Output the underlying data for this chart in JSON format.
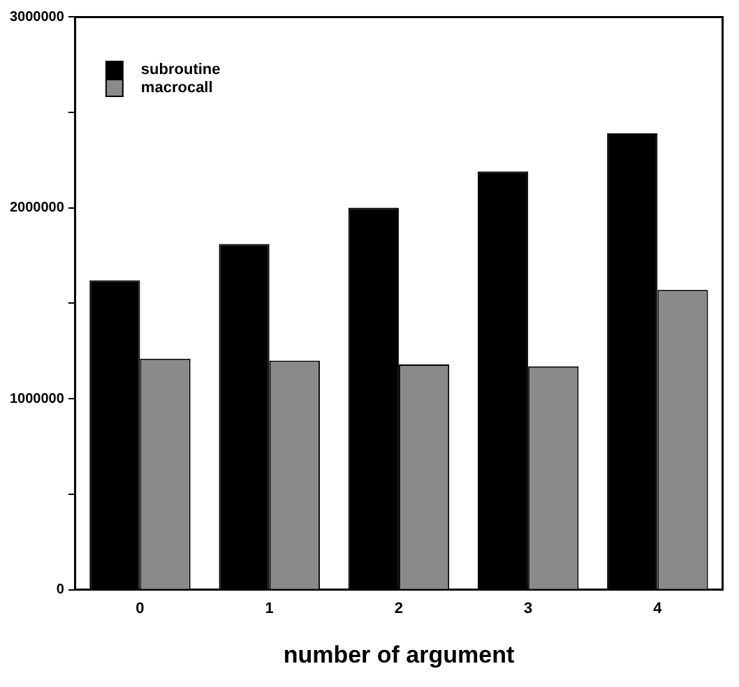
{
  "chart_data": {
    "type": "bar",
    "xlabel": "number of argument",
    "categories": [
      "0",
      "1",
      "2",
      "3",
      "4"
    ],
    "series": [
      {
        "name": "subroutine",
        "color": "#000000",
        "values": [
          1620000,
          1810000,
          2000000,
          2190000,
          2390000
        ]
      },
      {
        "name": "macrocall",
        "color": "#8a8a8a",
        "values": [
          1210000,
          1200000,
          1180000,
          1170000,
          1570000
        ]
      }
    ],
    "ylim": [
      0,
      3000000
    ],
    "yticks": [
      0,
      {
        "value": 500000,
        "label": null
      },
      1000000,
      {
        "value": 1500000,
        "label": null
      },
      2000000,
      {
        "value": 2500000,
        "label": null
      },
      3000000
    ],
    "grid": false,
    "legend": "top left"
  }
}
